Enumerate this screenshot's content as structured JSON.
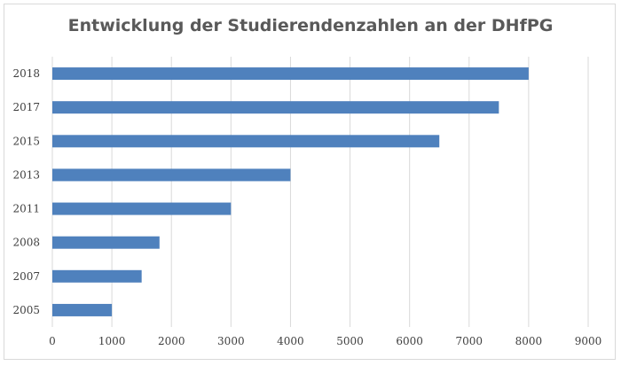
{
  "chart_data": {
    "type": "bar",
    "orientation": "horizontal",
    "title": "Entwicklung der Studierendenzahlen an der DHfPG",
    "categories": [
      "2018",
      "2017",
      "2015",
      "2013",
      "2011",
      "2008",
      "2007",
      "2005"
    ],
    "values": [
      8000,
      7500,
      6500,
      4000,
      3000,
      1800,
      1500,
      1000
    ],
    "xlim": [
      0,
      9000
    ],
    "x_ticks": [
      "0",
      "1000",
      "2000",
      "3000",
      "4000",
      "5000",
      "6000",
      "7000",
      "8000",
      "9000"
    ],
    "grid": "vertical",
    "legend": "none",
    "bar_color": "#4f81bd",
    "grid_color": "#d9d9d9"
  }
}
